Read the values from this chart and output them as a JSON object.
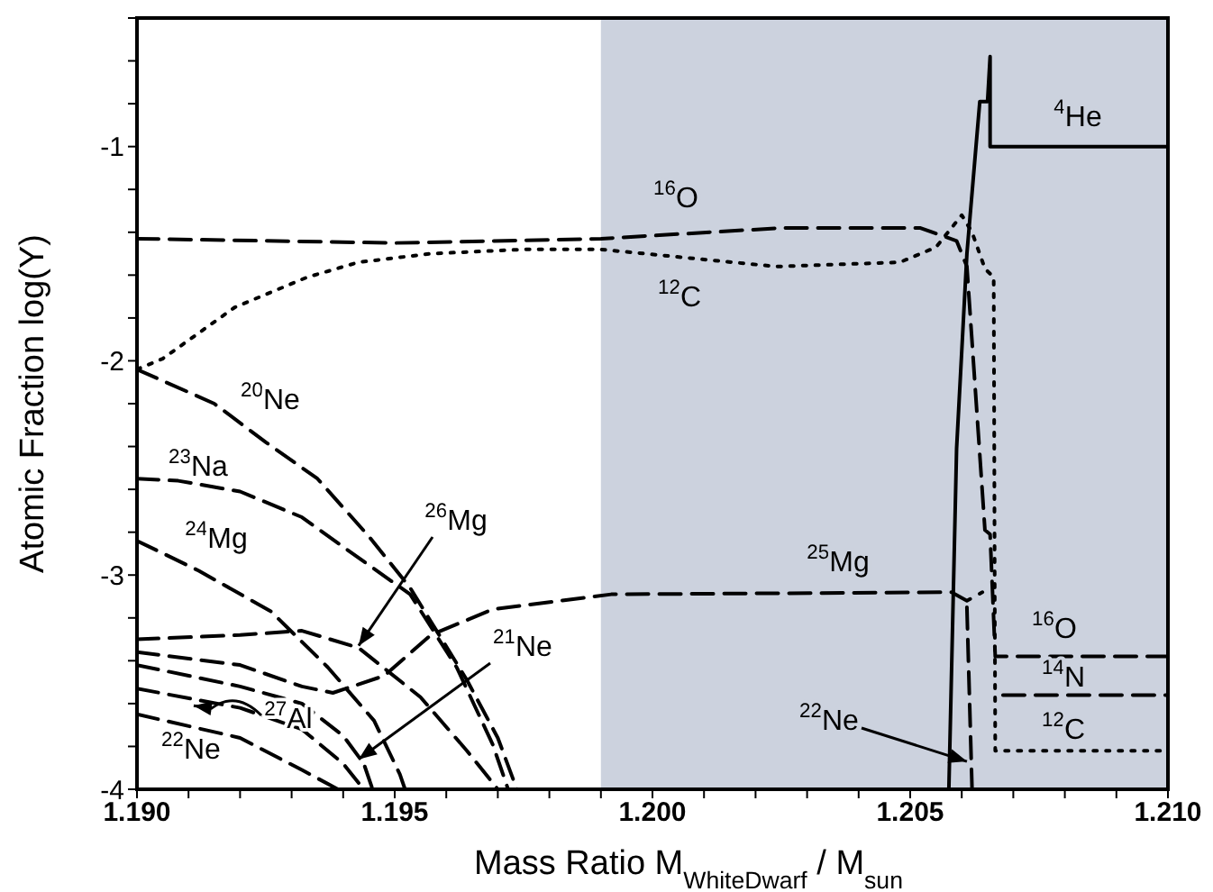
{
  "chart_data": {
    "type": "line",
    "xlabel": "Mass Ratio  M$_{WhiteDwarf}$ / M$_{sun}$",
    "ylabel": "Atomic Fraction  log(Y)",
    "xlim": [
      1.19,
      1.21
    ],
    "xticks": [
      {
        "value": 1.19,
        "label": "1.190"
      },
      {
        "value": 1.191,
        "label": null
      },
      {
        "value": 1.192,
        "label": null
      },
      {
        "value": 1.193,
        "label": null
      },
      {
        "value": 1.194,
        "label": null
      },
      {
        "value": 1.195,
        "label": "1.195"
      },
      {
        "value": 1.196,
        "label": null
      },
      {
        "value": 1.197,
        "label": null
      },
      {
        "value": 1.198,
        "label": null
      },
      {
        "value": 1.199,
        "label": null
      },
      {
        "value": 1.2,
        "label": "1.200"
      },
      {
        "value": 1.201,
        "label": null
      },
      {
        "value": 1.202,
        "label": null
      },
      {
        "value": 1.203,
        "label": null
      },
      {
        "value": 1.204,
        "label": null
      },
      {
        "value": 1.205,
        "label": "1.205"
      },
      {
        "value": 1.206,
        "label": null
      },
      {
        "value": 1.207,
        "label": null
      },
      {
        "value": 1.208,
        "label": null
      },
      {
        "value": 1.209,
        "label": null
      },
      {
        "value": 1.21,
        "label": "1.210"
      }
    ],
    "ylim": [
      -4,
      -0.4
    ],
    "yticks": [
      -4,
      {
        "value": -3.8,
        "label": null
      },
      {
        "value": -3.6,
        "label": null
      },
      {
        "value": -3.4,
        "label": null
      },
      {
        "value": -3.2,
        "label": null
      },
      -3,
      {
        "value": -2.8,
        "label": null
      },
      {
        "value": -2.6,
        "label": null
      },
      {
        "value": -2.4,
        "label": null
      },
      {
        "value": -2.2,
        "label": null
      },
      -2,
      {
        "value": -1.8,
        "label": null
      },
      {
        "value": -1.6,
        "label": null
      },
      {
        "value": -1.4,
        "label": null
      },
      {
        "value": -1.2,
        "label": null
      },
      -1,
      {
        "value": -0.8,
        "label": null
      },
      {
        "value": -0.6,
        "label": null
      },
      {
        "value": -0.4,
        "label": null
      }
    ],
    "marker": "none",
    "bands": [
      {
        "axis": "x",
        "from": 1.199,
        "to": 1.21,
        "color": "#ccd2de"
      }
    ],
    "series": [
      {
        "color": "#000000",
        "line_style": "dashed",
        "x": [
          1.19,
          1.1925,
          1.195,
          1.199,
          1.2025,
          1.2052,
          1.2059,
          1.2061,
          1.20645,
          1.20655,
          1.20665,
          1.20672,
          1.21
        ],
        "values": [
          -1.43,
          -1.44,
          -1.45,
          -1.43,
          -1.38,
          -1.38,
          -1.44,
          -1.56,
          -2.79,
          -2.81,
          -3.38,
          -3.38,
          -3.38
        ]
      },
      {
        "color": "#000000",
        "line_style": "dotted",
        "x": [
          1.19,
          1.1905,
          1.1919,
          1.1933,
          1.1943,
          1.1957,
          1.1975,
          1.199,
          1.2024,
          1.2048,
          1.2055,
          1.206,
          1.2062,
          1.20645,
          1.20662,
          1.20665,
          1.21
        ],
        "values": [
          -2.04,
          -1.99,
          -1.75,
          -1.61,
          -1.54,
          -1.5,
          -1.48,
          -1.48,
          -1.56,
          -1.54,
          -1.47,
          -1.32,
          -1.4,
          -1.57,
          -1.61,
          -3.82,
          -3.82
        ]
      },
      {
        "color": "#000000",
        "line_style": "solid",
        "x": [
          1.20575,
          1.2059,
          1.2061,
          1.20635,
          1.2065,
          1.20655,
          1.20655,
          1.21
        ],
        "values": [
          -4,
          -2.41,
          -1.5,
          -0.79,
          -0.79,
          -0.58,
          -1.0,
          -1.0
        ]
      },
      {
        "color": "#000000",
        "line_style": "dashed",
        "x": [
          1.19,
          1.1915,
          1.1925,
          1.1935,
          1.1945,
          1.1953,
          1.1964,
          1.197,
          1.19737
        ],
        "values": [
          -2.04,
          -2.2,
          -2.38,
          -2.55,
          -2.82,
          -3.06,
          -3.49,
          -3.76,
          -4.0
        ]
      },
      {
        "color": "#000000",
        "line_style": "dashed",
        "x": [
          1.19,
          1.1908,
          1.192,
          1.1932,
          1.1943,
          1.1953,
          1.1962,
          1.1969,
          1.1972
        ],
        "values": [
          -2.55,
          -2.56,
          -2.61,
          -2.73,
          -2.92,
          -3.09,
          -3.43,
          -3.79,
          -4.0
        ]
      },
      {
        "color": "#000000",
        "line_style": "dashed",
        "x": [
          1.19,
          1.1912,
          1.1926,
          1.1937,
          1.1946,
          1.1951,
          1.1952
        ],
        "values": [
          -2.84,
          -2.98,
          -3.17,
          -3.43,
          -3.68,
          -3.93,
          -4.0
        ]
      },
      {
        "color": "#000000",
        "line_style": "dashed",
        "x": [
          1.19,
          1.192,
          1.1932,
          1.1943,
          1.1955,
          1.1964,
          1.197
        ],
        "values": [
          -3.3,
          -3.28,
          -3.26,
          -3.34,
          -3.57,
          -3.82,
          -4.0
        ]
      },
      {
        "color": "#000000",
        "line_style": "dashed",
        "x": [
          1.19,
          1.192,
          1.1932,
          1.1938,
          1.1948,
          1.1957,
          1.1969,
          1.1992,
          1.2058,
          1.2061,
          1.2064
        ],
        "values": [
          -3.36,
          -3.42,
          -3.52,
          -3.55,
          -3.47,
          -3.28,
          -3.16,
          -3.09,
          -3.08,
          -3.12,
          -3.08
        ]
      },
      {
        "color": "#000000",
        "line_style": "dashed",
        "x": [
          1.19,
          1.192,
          1.1932,
          1.194,
          1.1944,
          1.19457
        ],
        "values": [
          -3.42,
          -3.52,
          -3.6,
          -3.75,
          -3.88,
          -4.0
        ]
      },
      {
        "color": "#000000",
        "line_style": "dashed",
        "x": [
          1.19,
          1.192,
          1.1932,
          1.194,
          1.1944
        ],
        "values": [
          -3.53,
          -3.62,
          -3.72,
          -3.88,
          -4.0
        ]
      },
      {
        "color": "#000000",
        "line_style": "dashed",
        "x": [
          1.19,
          1.192,
          1.1932,
          1.1939
        ],
        "values": [
          -3.65,
          -3.76,
          -3.91,
          -4.0
        ]
      },
      {
        "color": "#000000",
        "line_style": "dashed",
        "x": [
          1.2061,
          1.2062
        ],
        "values": [
          -3.15,
          -4.0
        ]
      },
      {
        "color": "#000000",
        "line_style": "dashed",
        "x": [
          1.2068,
          1.21
        ],
        "values": [
          -3.56,
          -3.56
        ]
      }
    ],
    "annotations": [
      "$^{4}$He",
      "$^{16}$O",
      "$^{12}$C",
      "$^{20}$Ne",
      "$^{23}$Na",
      "$^{24}$Mg",
      {
        "text": "$^{26}$Mg",
        "x": 1.1943,
        "y": -3.33
      },
      "$^{25}$Mg",
      {
        "text": "$^{21}$Ne",
        "x": 1.1943,
        "y": -3.86
      },
      {
        "text": "$^{27}$Al",
        "x": 1.1911,
        "y": -3.61
      },
      "$^{22}$Ne",
      "$^{16}$O",
      "$^{14}$N",
      "$^{12}$C",
      {
        "text": "$^{22}$Ne",
        "x": 1.2061,
        "y": -3.87
      }
    ]
  }
}
